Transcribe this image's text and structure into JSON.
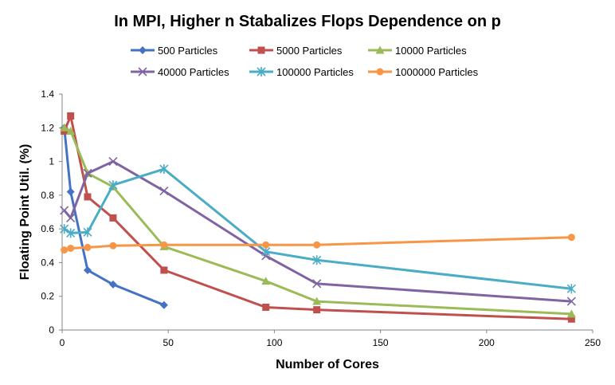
{
  "chart_data": {
    "type": "line",
    "title": "In MPI, Higher n Stabalizes Flops Dependence on p",
    "xlabel": "Number of Cores",
    "ylabel": "Floating Point Util. (%)",
    "xlim": [
      0,
      250
    ],
    "ylim": [
      0,
      1.4
    ],
    "xticks": [
      "0",
      "50",
      "100",
      "150",
      "200",
      "250"
    ],
    "yticks": [
      "0",
      "0.2",
      "0.4",
      "0.6",
      "0.8",
      "1",
      "1.2",
      "1.4"
    ],
    "grid": false,
    "legend_position": "top",
    "series": [
      {
        "name": "500 Particles",
        "color": "#4472C4",
        "marker": "diamond",
        "x": [
          1,
          4,
          12,
          24,
          48
        ],
        "y": [
          1.2,
          0.82,
          0.355,
          0.27,
          0.148
        ]
      },
      {
        "name": "5000 Particles",
        "color": "#C0504D",
        "marker": "square",
        "x": [
          1,
          4,
          12,
          24,
          48,
          96,
          120,
          240
        ],
        "y": [
          1.18,
          1.27,
          0.79,
          0.665,
          0.355,
          0.135,
          0.12,
          0.065
        ]
      },
      {
        "name": "10000 Particles",
        "color": "#9BBB59",
        "marker": "triangle",
        "x": [
          1,
          4,
          12,
          24,
          48,
          96,
          120,
          240
        ],
        "y": [
          1.2,
          1.18,
          0.93,
          0.85,
          0.495,
          0.29,
          0.17,
          0.095
        ]
      },
      {
        "name": "40000 Particles",
        "color": "#8064A2",
        "marker": "x",
        "x": [
          1,
          4,
          12,
          24,
          48,
          96,
          120,
          240
        ],
        "y": [
          0.71,
          0.665,
          0.93,
          1.0,
          0.825,
          0.44,
          0.275,
          0.17
        ]
      },
      {
        "name": "100000 Particles",
        "color": "#4BACC6",
        "marker": "star",
        "x": [
          1,
          4,
          12,
          24,
          48,
          96,
          120,
          240
        ],
        "y": [
          0.6,
          0.575,
          0.58,
          0.86,
          0.955,
          0.465,
          0.415,
          0.245
        ]
      },
      {
        "name": "1000000 Particles",
        "color": "#F79646",
        "marker": "circle",
        "x": [
          1,
          4,
          12,
          24,
          48,
          96,
          120,
          240
        ],
        "y": [
          0.475,
          0.485,
          0.49,
          0.5,
          0.505,
          0.505,
          0.505,
          0.55
        ]
      }
    ]
  }
}
